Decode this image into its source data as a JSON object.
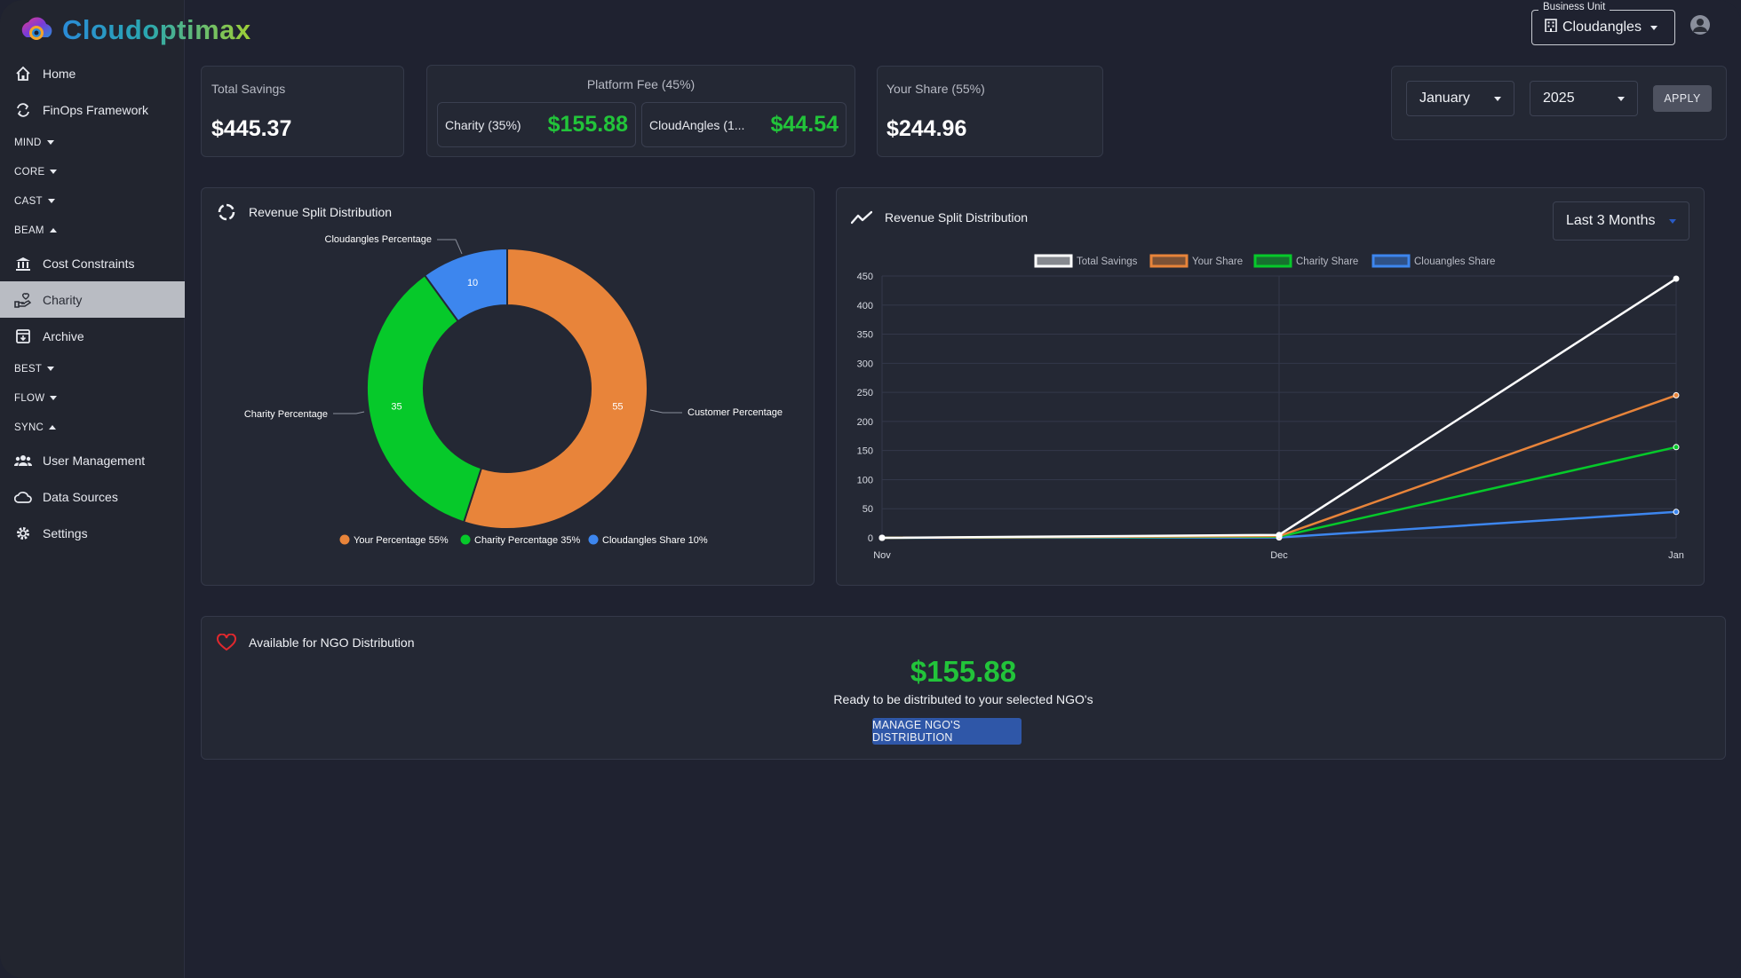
{
  "app": {
    "name": "Cloudoptimax"
  },
  "sidebar": {
    "items": [
      {
        "type": "item",
        "label": "Home",
        "icon": "home-icon"
      },
      {
        "type": "item",
        "label": "FinOps Framework",
        "icon": "cycle-icon"
      },
      {
        "type": "group",
        "label": "MIND",
        "expanded": false
      },
      {
        "type": "group",
        "label": "CORE",
        "expanded": false
      },
      {
        "type": "group",
        "label": "CAST",
        "expanded": false
      },
      {
        "type": "group",
        "label": "BEAM",
        "expanded": true
      },
      {
        "type": "item",
        "label": "Cost Constraints",
        "icon": "bank-icon"
      },
      {
        "type": "item",
        "label": "Charity",
        "icon": "hand-heart-icon",
        "active": true
      },
      {
        "type": "item",
        "label": "Archive",
        "icon": "archive-icon"
      },
      {
        "type": "group",
        "label": "BEST",
        "expanded": false
      },
      {
        "type": "group",
        "label": "FLOW",
        "expanded": false
      },
      {
        "type": "group",
        "label": "SYNC",
        "expanded": true
      },
      {
        "type": "item",
        "label": "User Management",
        "icon": "users-icon"
      },
      {
        "type": "item",
        "label": "Data Sources",
        "icon": "cloud-icon"
      },
      {
        "type": "item",
        "label": "Settings",
        "icon": "gear-icon"
      }
    ]
  },
  "header": {
    "business_unit_label": "Business Unit",
    "business_unit_value": "Cloudangles"
  },
  "summary": {
    "total_savings_label": "Total Savings",
    "total_savings_value": "$445.37",
    "platform_fee_label": "Platform Fee (45%)",
    "charity_label": "Charity (35%)",
    "charity_value": "$155.88",
    "cloudangles_label": "CloudAngles (1...",
    "cloudangles_value": "$44.54",
    "your_share_label": "Your Share (55%)",
    "your_share_value": "$244.96"
  },
  "filters": {
    "month": "January",
    "year": "2025",
    "apply_label": "APPLY"
  },
  "donut_panel": {
    "title": "Revenue Split Distribution",
    "callouts": {
      "cloudangles": "Cloudangles Percentage",
      "charity": "Charity Percentage",
      "customer": "Customer Percentage"
    },
    "legend": [
      "Your Percentage 55%",
      "Charity Percentage 35%",
      "Cloudangles Share 10%"
    ]
  },
  "line_panel": {
    "title": "Revenue Split Distribution",
    "range": "Last 3 Months",
    "legend": [
      "Total Savings",
      "Your Share",
      "Charity Share",
      "Clouangles Share"
    ]
  },
  "chart_data": [
    {
      "type": "pie",
      "variant": "donut",
      "title": "Revenue Split Distribution",
      "categories": [
        "Customer Percentage",
        "Charity Percentage",
        "Cloudangles Percentage"
      ],
      "values": [
        55,
        35,
        10
      ],
      "colors": [
        "#e8843a",
        "#06c92a",
        "#3d86ee"
      ],
      "legend_placement": "bottom"
    },
    {
      "type": "line",
      "title": "Revenue Split Distribution",
      "x": [
        "Nov",
        "Dec",
        "Jan"
      ],
      "ylim": [
        0,
        450
      ],
      "yticks": [
        0,
        50,
        100,
        150,
        200,
        250,
        300,
        350,
        400,
        450
      ],
      "grid": true,
      "legend_placement": "top",
      "series": [
        {
          "name": "Total Savings",
          "values": [
            0,
            5,
            445.37
          ],
          "color": "#ffffff"
        },
        {
          "name": "Your Share",
          "values": [
            0,
            3,
            244.96
          ],
          "color": "#e8843a"
        },
        {
          "name": "Charity Share",
          "values": [
            0,
            2,
            155.88
          ],
          "color": "#06c92a"
        },
        {
          "name": "Clouangles Share",
          "values": [
            0,
            0.5,
            44.54
          ],
          "color": "#3d86ee"
        }
      ]
    }
  ],
  "ngo": {
    "title": "Available for NGO Distribution",
    "amount": "$155.88",
    "subtitle": "Ready to be distributed to your selected NGO's",
    "button_label": "MANAGE NGO'S DISTRIBUTION"
  }
}
